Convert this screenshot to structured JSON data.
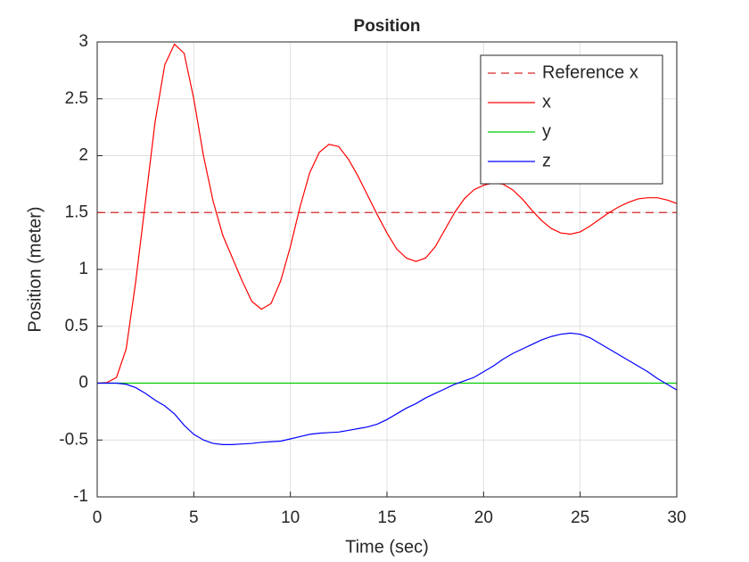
{
  "chart_data": {
    "type": "line",
    "title": "Position",
    "xlabel": "Time (sec)",
    "ylabel": "Position (meter)",
    "x": [
      0,
      0.5,
      1,
      1.5,
      2,
      2.5,
      3,
      3.5,
      4,
      4.5,
      5,
      5.5,
      6,
      6.5,
      7,
      7.5,
      8,
      8.5,
      9,
      9.5,
      10,
      10.5,
      11,
      11.5,
      12,
      12.5,
      13,
      13.5,
      14,
      14.5,
      15,
      15.5,
      16,
      16.5,
      17,
      17.5,
      18,
      18.5,
      19,
      19.5,
      20,
      20.5,
      21,
      21.5,
      22,
      22.5,
      23,
      23.5,
      24,
      24.5,
      25,
      25.5,
      26,
      26.5,
      27,
      27.5,
      28,
      28.5,
      29,
      29.5,
      30
    ],
    "series": [
      {
        "name": "Reference x",
        "color": "#d62728",
        "linestyle": "dashed",
        "values": [
          1.5,
          1.5,
          1.5,
          1.5,
          1.5,
          1.5,
          1.5,
          1.5,
          1.5,
          1.5,
          1.5,
          1.5,
          1.5,
          1.5,
          1.5,
          1.5,
          1.5,
          1.5,
          1.5,
          1.5,
          1.5,
          1.5,
          1.5,
          1.5,
          1.5,
          1.5,
          1.5,
          1.5,
          1.5,
          1.5,
          1.5,
          1.5,
          1.5,
          1.5,
          1.5,
          1.5,
          1.5,
          1.5,
          1.5,
          1.5,
          1.5,
          1.5,
          1.5,
          1.5,
          1.5,
          1.5,
          1.5,
          1.5,
          1.5,
          1.5,
          1.5,
          1.5,
          1.5,
          1.5,
          1.5,
          1.5,
          1.5,
          1.5,
          1.5,
          1.5,
          1.5
        ]
      },
      {
        "name": "x",
        "color": "#ff0000",
        "linestyle": "solid",
        "values": [
          0,
          0.005,
          0.05,
          0.3,
          0.9,
          1.6,
          2.3,
          2.8,
          2.98,
          2.9,
          2.5,
          2.0,
          1.6,
          1.3,
          1.1,
          0.9,
          0.72,
          0.65,
          0.7,
          0.9,
          1.2,
          1.55,
          1.85,
          2.03,
          2.1,
          2.08,
          1.97,
          1.82,
          1.65,
          1.48,
          1.32,
          1.18,
          1.1,
          1.07,
          1.1,
          1.2,
          1.35,
          1.5,
          1.62,
          1.7,
          1.74,
          1.76,
          1.75,
          1.7,
          1.62,
          1.52,
          1.43,
          1.36,
          1.32,
          1.31,
          1.33,
          1.38,
          1.44,
          1.5,
          1.55,
          1.59,
          1.62,
          1.63,
          1.63,
          1.61,
          1.58
        ]
      },
      {
        "name": "y",
        "color": "#00cc00",
        "linestyle": "solid",
        "values": [
          0,
          0,
          0,
          0,
          0,
          0,
          0,
          0,
          0,
          0,
          0,
          0,
          0,
          0,
          0,
          0,
          0,
          0,
          0,
          0,
          0,
          0,
          0,
          0,
          0,
          0,
          0,
          0,
          0,
          0,
          0,
          0,
          0,
          0,
          0,
          0,
          0,
          0,
          0,
          0,
          0,
          0,
          0,
          0,
          0,
          0,
          0,
          0,
          0,
          0,
          0,
          0,
          0,
          0,
          0,
          0,
          0,
          0,
          0,
          0,
          0
        ]
      },
      {
        "name": "z",
        "color": "#0000ff",
        "linestyle": "solid",
        "values": [
          0,
          0,
          0,
          -0.01,
          -0.04,
          -0.09,
          -0.15,
          -0.2,
          -0.27,
          -0.37,
          -0.45,
          -0.5,
          -0.53,
          -0.54,
          -0.54,
          -0.535,
          -0.53,
          -0.52,
          -0.515,
          -0.51,
          -0.49,
          -0.47,
          -0.45,
          -0.44,
          -0.435,
          -0.43,
          -0.415,
          -0.4,
          -0.385,
          -0.36,
          -0.32,
          -0.27,
          -0.22,
          -0.18,
          -0.13,
          -0.09,
          -0.05,
          -0.01,
          0.02,
          0.05,
          0.1,
          0.15,
          0.21,
          0.26,
          0.3,
          0.34,
          0.38,
          0.41,
          0.43,
          0.44,
          0.43,
          0.4,
          0.35,
          0.3,
          0.25,
          0.2,
          0.15,
          0.1,
          0.04,
          -0.01,
          -0.06
        ]
      }
    ],
    "xlim": [
      0,
      30
    ],
    "xticks": [
      0,
      5,
      10,
      15,
      20,
      25,
      30
    ],
    "ylim": [
      -1,
      3
    ],
    "yticks": [
      -1,
      -0.5,
      0,
      0.5,
      1,
      1.5,
      2,
      2.5,
      3
    ],
    "grid": true,
    "legend": "northeast"
  }
}
